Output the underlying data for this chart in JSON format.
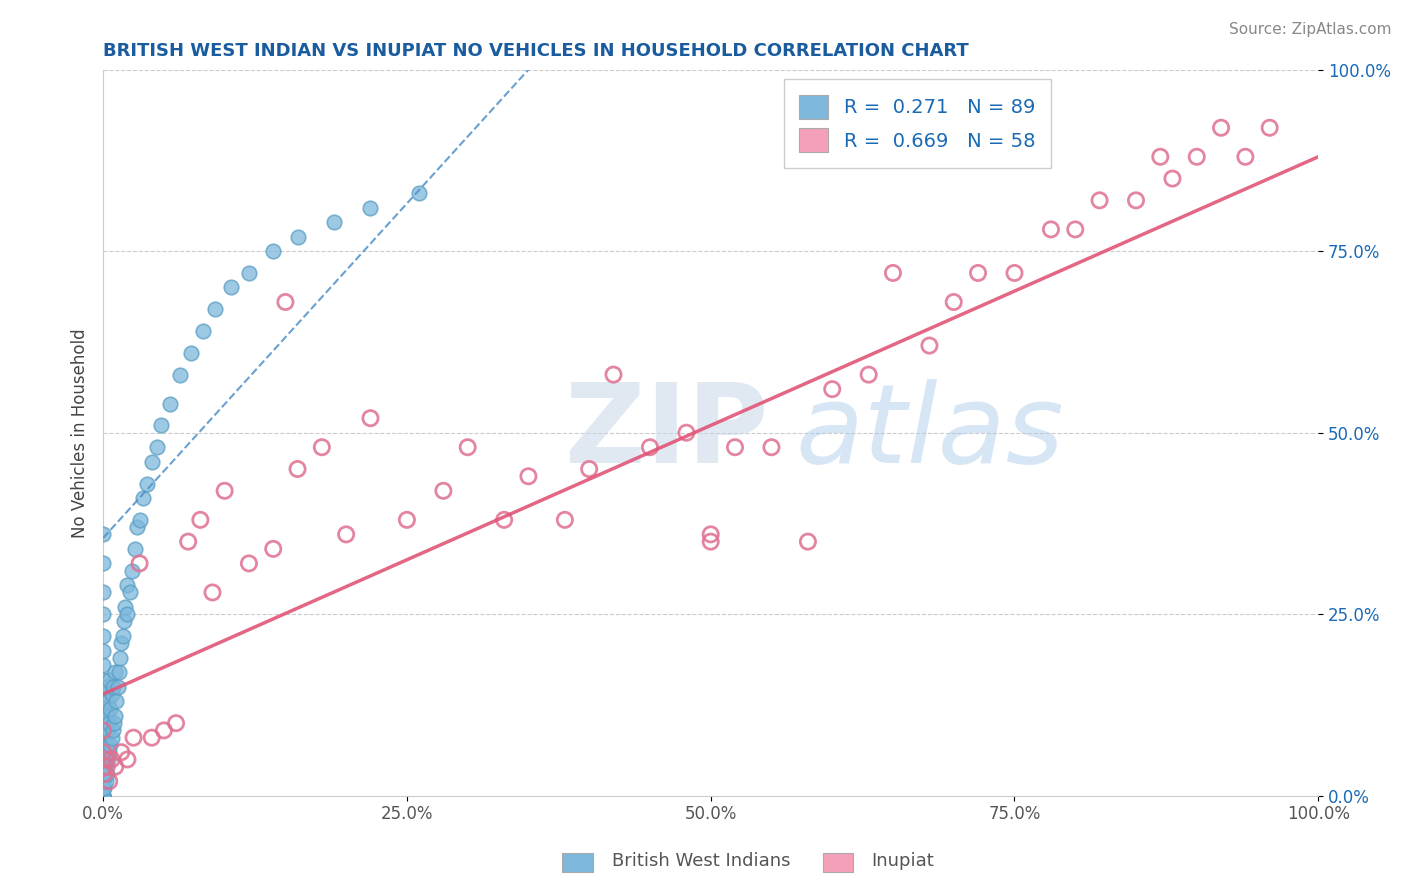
{
  "title": "BRITISH WEST INDIAN VS INUPIAT NO VEHICLES IN HOUSEHOLD CORRELATION CHART",
  "source_text": "Source: ZipAtlas.com",
  "ylabel": "No Vehicles in Household",
  "watermark_zip": "ZIP",
  "watermark_atlas": "atlas",
  "x_min": 0.0,
  "x_max": 1.0,
  "y_min": 0.0,
  "y_max": 1.0,
  "x_ticks": [
    0.0,
    0.25,
    0.5,
    0.75,
    1.0
  ],
  "x_tick_labels": [
    "0.0%",
    "25.0%",
    "50.0%",
    "75.0%",
    "100.0%"
  ],
  "y_ticks": [
    0.0,
    0.25,
    0.5,
    0.75,
    1.0
  ],
  "y_tick_labels": [
    "0.0%",
    "25.0%",
    "50.0%",
    "75.0%",
    "100.0%"
  ],
  "blue_color": "#7db8dc",
  "blue_edge_color": "#5a9ec4",
  "pink_color": "#f4a0b8",
  "pink_edge_color": "#e07090",
  "pink_line_color": "#e05578",
  "blue_line_color": "#5090c8",
  "blue_R": 0.271,
  "blue_N": 89,
  "pink_R": 0.669,
  "pink_N": 58,
  "blue_label": "British West Indians",
  "pink_label": "Inupiat",
  "title_color": "#1a5c9e",
  "source_color": "#888888",
  "legend_text_color": "#1a6ab5",
  "right_tick_color": "#1a6ab5",
  "blue_scatter_x": [
    0.0,
    0.0,
    0.0,
    0.0,
    0.0,
    0.0,
    0.0,
    0.0,
    0.0,
    0.0,
    0.0,
    0.0,
    0.0,
    0.0,
    0.0,
    0.0,
    0.0,
    0.0,
    0.0,
    0.0,
    0.0,
    0.0,
    0.0,
    0.0,
    0.0,
    0.0,
    0.0,
    0.0,
    0.0,
    0.0,
    0.001,
    0.001,
    0.001,
    0.001,
    0.001,
    0.002,
    0.002,
    0.002,
    0.003,
    0.003,
    0.003,
    0.003,
    0.004,
    0.004,
    0.004,
    0.005,
    0.005,
    0.005,
    0.006,
    0.006,
    0.007,
    0.007,
    0.008,
    0.008,
    0.009,
    0.01,
    0.01,
    0.011,
    0.012,
    0.013,
    0.014,
    0.015,
    0.016,
    0.017,
    0.018,
    0.02,
    0.02,
    0.022,
    0.024,
    0.026,
    0.028,
    0.03,
    0.033,
    0.036,
    0.04,
    0.044,
    0.048,
    0.055,
    0.063,
    0.072,
    0.082,
    0.092,
    0.105,
    0.12,
    0.14,
    0.16,
    0.19,
    0.22,
    0.26
  ],
  "blue_scatter_y": [
    0.0,
    0.0,
    0.0,
    0.0,
    0.0,
    0.01,
    0.01,
    0.02,
    0.02,
    0.03,
    0.03,
    0.04,
    0.04,
    0.05,
    0.06,
    0.07,
    0.08,
    0.09,
    0.1,
    0.11,
    0.12,
    0.14,
    0.16,
    0.18,
    0.2,
    0.22,
    0.25,
    0.28,
    0.32,
    0.36,
    0.01,
    0.04,
    0.07,
    0.1,
    0.14,
    0.02,
    0.06,
    0.1,
    0.03,
    0.07,
    0.11,
    0.15,
    0.05,
    0.09,
    0.13,
    0.06,
    0.1,
    0.16,
    0.07,
    0.12,
    0.08,
    0.14,
    0.09,
    0.15,
    0.1,
    0.11,
    0.17,
    0.13,
    0.15,
    0.17,
    0.19,
    0.21,
    0.22,
    0.24,
    0.26,
    0.25,
    0.29,
    0.28,
    0.31,
    0.34,
    0.37,
    0.38,
    0.41,
    0.43,
    0.46,
    0.48,
    0.51,
    0.54,
    0.58,
    0.61,
    0.64,
    0.67,
    0.7,
    0.72,
    0.75,
    0.77,
    0.79,
    0.81,
    0.83
  ],
  "pink_scatter_x": [
    0.0,
    0.0,
    0.001,
    0.002,
    0.003,
    0.005,
    0.007,
    0.01,
    0.015,
    0.02,
    0.025,
    0.03,
    0.04,
    0.05,
    0.06,
    0.07,
    0.08,
    0.09,
    0.1,
    0.12,
    0.14,
    0.15,
    0.16,
    0.18,
    0.2,
    0.22,
    0.25,
    0.28,
    0.3,
    0.33,
    0.35,
    0.38,
    0.4,
    0.42,
    0.45,
    0.48,
    0.5,
    0.5,
    0.52,
    0.55,
    0.58,
    0.6,
    0.63,
    0.65,
    0.68,
    0.7,
    0.72,
    0.75,
    0.78,
    0.8,
    0.82,
    0.85,
    0.87,
    0.88,
    0.9,
    0.92,
    0.94,
    0.96
  ],
  "pink_scatter_y": [
    0.06,
    0.09,
    0.03,
    0.05,
    0.04,
    0.02,
    0.05,
    0.04,
    0.06,
    0.05,
    0.08,
    0.32,
    0.08,
    0.09,
    0.1,
    0.35,
    0.38,
    0.28,
    0.42,
    0.32,
    0.34,
    0.68,
    0.45,
    0.48,
    0.36,
    0.52,
    0.38,
    0.42,
    0.48,
    0.38,
    0.44,
    0.38,
    0.45,
    0.58,
    0.48,
    0.5,
    0.35,
    0.36,
    0.48,
    0.48,
    0.35,
    0.56,
    0.58,
    0.72,
    0.62,
    0.68,
    0.72,
    0.72,
    0.78,
    0.78,
    0.82,
    0.82,
    0.88,
    0.85,
    0.88,
    0.92,
    0.88,
    0.92
  ],
  "blue_trend_x0": 0.0,
  "blue_trend_x1": 0.35,
  "blue_trend_y0": 0.355,
  "blue_trend_y1": 1.0,
  "pink_trend_x0": 0.0,
  "pink_trend_x1": 1.0,
  "pink_trend_y0": 0.14,
  "pink_trend_y1": 0.88
}
